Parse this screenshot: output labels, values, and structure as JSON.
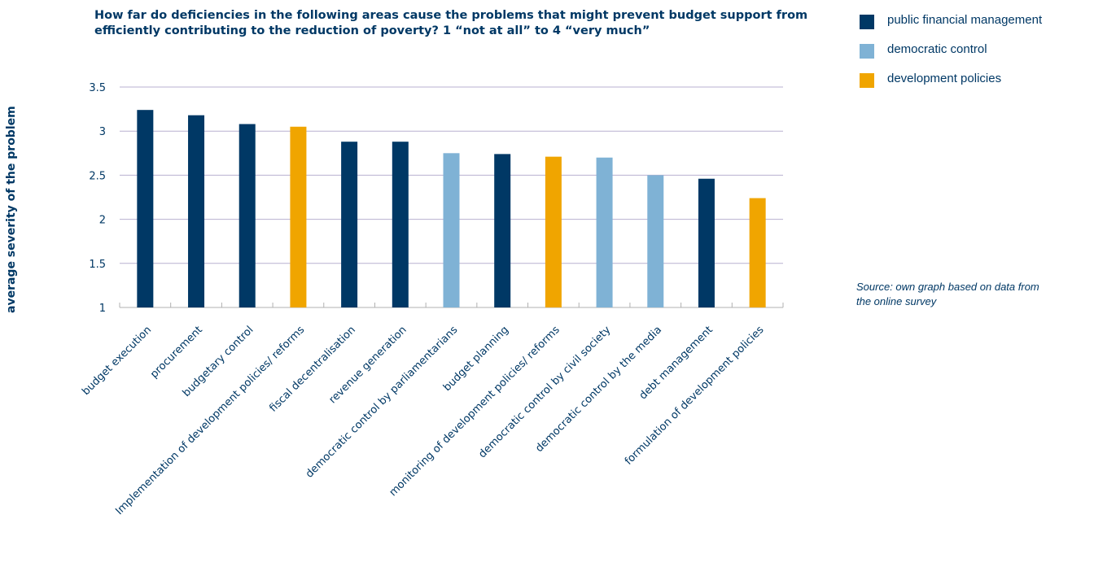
{
  "chart_data": {
    "type": "bar",
    "title": "How far do deficiencies in the following areas cause the problems that might prevent budget support from efficiently contributing to the reduction of poverty? 1 “not at all” to 4 “very much”",
    "ylabel": "average severity of the problem",
    "xlabel": "",
    "ylim": [
      1,
      3.5
    ],
    "yticks": [
      "1",
      "1.5",
      "2",
      "2.5",
      "3",
      "3.5"
    ],
    "grid": true,
    "legend_position": "top-right",
    "categories": [
      "budget execution",
      "procurement",
      "budgetary control",
      "Implementation of development policies/ reforms",
      "fiscal decentralisation",
      "revenue generation",
      "democratic control by parliamentarians",
      "budget planning",
      "monitoring of development policies/ reforms",
      "democratic control by civil society",
      "democratic control by the media",
      "debt management",
      "formulation of development policies"
    ],
    "values": [
      3.24,
      3.18,
      3.08,
      3.05,
      2.88,
      2.88,
      2.75,
      2.74,
      2.71,
      2.7,
      2.5,
      2.46,
      2.24
    ],
    "groups": [
      "public financial management",
      "public financial management",
      "public financial management",
      "development policies",
      "public financial management",
      "public financial management",
      "democratic control",
      "public financial management",
      "development policies",
      "democratic control",
      "democratic control",
      "public financial management",
      "development policies"
    ],
    "legend": [
      {
        "name": "public financial management",
        "color": "#003865"
      },
      {
        "name": "democratic control",
        "color": "#7fb2d5"
      },
      {
        "name": "development policies",
        "color": "#f0a500"
      }
    ]
  },
  "source_note": "Source: own graph based on data from the online survey",
  "colors": {
    "text": "#003865",
    "grid": "#b8b0d0",
    "axis": "#b0b0b0"
  }
}
